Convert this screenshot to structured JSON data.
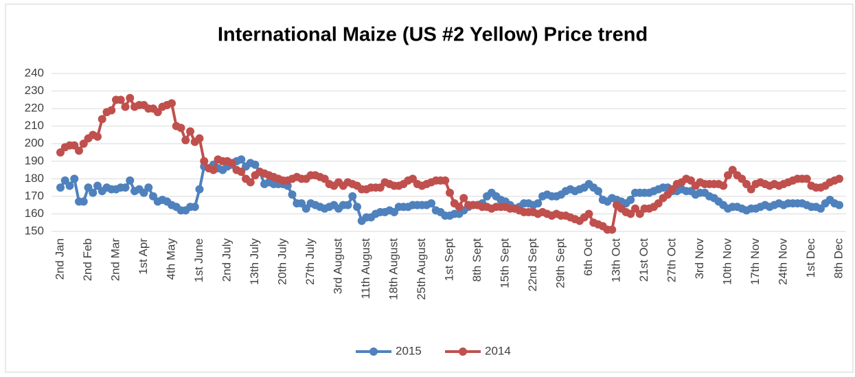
{
  "chart_data": {
    "type": "line",
    "title": "International Maize (US #2 Yellow) Price trend",
    "categories": [
      "2nd Jan",
      null,
      null,
      null,
      null,
      null,
      "2nd Feb",
      null,
      null,
      null,
      null,
      null,
      "2nd Mar",
      null,
      null,
      null,
      null,
      null,
      "1st Apr",
      null,
      null,
      null,
      null,
      null,
      "4th May",
      null,
      null,
      null,
      null,
      null,
      "1st June",
      null,
      null,
      null,
      null,
      null,
      "2nd July",
      null,
      null,
      null,
      null,
      null,
      "13th July",
      null,
      null,
      null,
      null,
      null,
      "20th July",
      null,
      null,
      null,
      null,
      null,
      "27th July",
      null,
      null,
      null,
      null,
      null,
      "3rd August",
      null,
      null,
      null,
      null,
      null,
      "11th August",
      null,
      null,
      null,
      null,
      null,
      "18th August",
      null,
      null,
      null,
      null,
      null,
      "25th August",
      null,
      null,
      null,
      null,
      null,
      "1st Sept",
      null,
      null,
      null,
      null,
      null,
      "8th  Sept",
      null,
      null,
      null,
      null,
      null,
      "15th  Sept",
      null,
      null,
      null,
      null,
      null,
      "22nd  Sept",
      null,
      null,
      null,
      null,
      null,
      "29th  Sept",
      null,
      null,
      null,
      null,
      null,
      "6th Oct",
      null,
      null,
      null,
      null,
      null,
      "13th Oct",
      null,
      null,
      null,
      null,
      null,
      "21st Oct",
      null,
      null,
      null,
      null,
      null,
      "27th Oct",
      null,
      null,
      null,
      null,
      null,
      "3rd Nov",
      null,
      null,
      null,
      null,
      null,
      "10th Nov",
      null,
      null,
      null,
      null,
      null,
      "17th Nov",
      null,
      null,
      null,
      null,
      null,
      "24th Nov",
      null,
      null,
      null,
      null,
      null,
      "1st Dec",
      null,
      null,
      null,
      null,
      null,
      "8th Dec"
    ],
    "series": [
      {
        "name": "2015",
        "color": "#4f81bd",
        "values": [
          175,
          179,
          176,
          180,
          167,
          167,
          175,
          172,
          176,
          173,
          175,
          174,
          174,
          175,
          175,
          179,
          173,
          174,
          172,
          175,
          170,
          167,
          168,
          167,
          165,
          164,
          162,
          162,
          164,
          164,
          174,
          187,
          186,
          188,
          186,
          185,
          187,
          188,
          190,
          191,
          187,
          189,
          188,
          184,
          177,
          178,
          177,
          177,
          177,
          176,
          171,
          166,
          166,
          163,
          166,
          165,
          164,
          163,
          164,
          165,
          163,
          165,
          165,
          170,
          164,
          156,
          158,
          158,
          160,
          161,
          161,
          162,
          161,
          164,
          164,
          164,
          165,
          165,
          165,
          165,
          166,
          162,
          161,
          159,
          159,
          160,
          160,
          162,
          164,
          165,
          165,
          166,
          170,
          172,
          170,
          168,
          167,
          165,
          163,
          164,
          166,
          166,
          165,
          166,
          170,
          171,
          170,
          170,
          171,
          173,
          174,
          173,
          174,
          175,
          177,
          175,
          173,
          168,
          167,
          169,
          168,
          167,
          166,
          168,
          172,
          172,
          172,
          172,
          173,
          174,
          175,
          175,
          173,
          173,
          174,
          173,
          173,
          171,
          172,
          172,
          170,
          169,
          167,
          165,
          163,
          164,
          164,
          163,
          162,
          163,
          163,
          164,
          165,
          164,
          165,
          166,
          165,
          166,
          166,
          166,
          166,
          165,
          164,
          164,
          163,
          166,
          168,
          166,
          165
        ]
      },
      {
        "name": "2014",
        "color": "#c0504d",
        "values": [
          195,
          198,
          199,
          199,
          196,
          200,
          203,
          205,
          204,
          214,
          218,
          219,
          225,
          225,
          221,
          226,
          221,
          222,
          222,
          220,
          220,
          218,
          221,
          222,
          223,
          210,
          209,
          202,
          207,
          201,
          203,
          190,
          186,
          185,
          191,
          190,
          190,
          189,
          185,
          184,
          180,
          178,
          182,
          184,
          183,
          182,
          181,
          180,
          179,
          179,
          180,
          181,
          180,
          180,
          182,
          182,
          181,
          180,
          177,
          176,
          178,
          176,
          178,
          177,
          176,
          174,
          174,
          175,
          175,
          175,
          178,
          177,
          176,
          176,
          177,
          179,
          180,
          177,
          176,
          177,
          178,
          179,
          179,
          179,
          172,
          166,
          164,
          169,
          165,
          165,
          165,
          164,
          164,
          163,
          164,
          164,
          164,
          163,
          163,
          162,
          161,
          161,
          161,
          160,
          161,
          160,
          159,
          160,
          159,
          159,
          158,
          157,
          156,
          158,
          160,
          155,
          154,
          153,
          151,
          151,
          165,
          163,
          161,
          160,
          163,
          160,
          163,
          163,
          164,
          166,
          169,
          171,
          174,
          177,
          178,
          180,
          179,
          176,
          178,
          177,
          177,
          177,
          177,
          176,
          182,
          185,
          182,
          180,
          177,
          174,
          177,
          178,
          177,
          176,
          177,
          176,
          177,
          178,
          179,
          180,
          180,
          180,
          176,
          175,
          175,
          176,
          178,
          179,
          180
        ]
      }
    ],
    "ylim": [
      150,
      240
    ],
    "yticks": [
      150,
      160,
      170,
      180,
      190,
      200,
      210,
      220,
      230,
      240
    ],
    "grid": true,
    "legend": "bottom"
  }
}
